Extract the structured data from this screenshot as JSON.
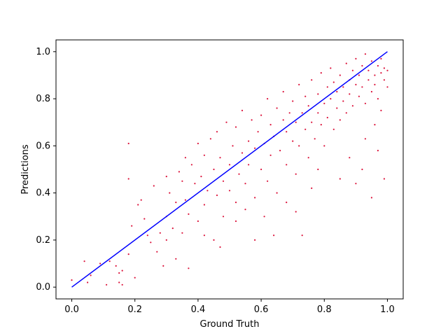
{
  "chart_data": {
    "type": "scatter",
    "title": "",
    "xlabel": "Ground Truth",
    "ylabel": "Predictions",
    "xlim": [
      -0.05,
      1.05
    ],
    "ylim": [
      -0.05,
      1.05
    ],
    "xticks": [
      0.0,
      0.2,
      0.4,
      0.6,
      0.8,
      1.0
    ],
    "yticks": [
      0.0,
      0.2,
      0.4,
      0.6,
      0.8,
      1.0
    ],
    "xtick_labels": [
      "0.0",
      "0.2",
      "0.4",
      "0.6",
      "0.8",
      "1.0"
    ],
    "ytick_labels": [
      "0.0",
      "0.2",
      "0.4",
      "0.6",
      "0.8",
      "1.0"
    ],
    "grid": false,
    "series": [
      {
        "marker": "point",
        "color": "#dc143c",
        "points": [
          [
            0.0,
            0.03
          ],
          [
            0.04,
            0.11
          ],
          [
            0.05,
            0.02
          ],
          [
            0.06,
            0.05
          ],
          [
            0.09,
            0.1
          ],
          [
            0.11,
            0.01
          ],
          [
            0.12,
            0.11
          ],
          [
            0.14,
            0.09
          ],
          [
            0.15,
            0.02
          ],
          [
            0.15,
            0.06
          ],
          [
            0.16,
            0.01
          ],
          [
            0.16,
            0.07
          ],
          [
            0.18,
            0.14
          ],
          [
            0.18,
            0.46
          ],
          [
            0.18,
            0.61
          ],
          [
            0.19,
            0.26
          ],
          [
            0.2,
            0.04
          ],
          [
            0.21,
            0.35
          ],
          [
            0.22,
            0.37
          ],
          [
            0.23,
            0.29
          ],
          [
            0.24,
            0.22
          ],
          [
            0.25,
            0.19
          ],
          [
            0.26,
            0.43
          ],
          [
            0.27,
            0.15
          ],
          [
            0.28,
            0.23
          ],
          [
            0.29,
            0.09
          ],
          [
            0.3,
            0.47
          ],
          [
            0.3,
            0.3
          ],
          [
            0.31,
            0.4
          ],
          [
            0.32,
            0.25
          ],
          [
            0.33,
            0.36
          ],
          [
            0.34,
            0.49
          ],
          [
            0.35,
            0.45
          ],
          [
            0.35,
            0.23
          ],
          [
            0.36,
            0.37
          ],
          [
            0.36,
            0.55
          ],
          [
            0.37,
            0.31
          ],
          [
            0.38,
            0.52
          ],
          [
            0.39,
            0.44
          ],
          [
            0.4,
            0.28
          ],
          [
            0.4,
            0.61
          ],
          [
            0.41,
            0.47
          ],
          [
            0.42,
            0.35
          ],
          [
            0.42,
            0.56
          ],
          [
            0.43,
            0.41
          ],
          [
            0.44,
            0.63
          ],
          [
            0.45,
            0.2
          ],
          [
            0.45,
            0.5
          ],
          [
            0.46,
            0.39
          ],
          [
            0.46,
            0.66
          ],
          [
            0.47,
            0.55
          ],
          [
            0.48,
            0.3
          ],
          [
            0.48,
            0.45
          ],
          [
            0.49,
            0.7
          ],
          [
            0.5,
            0.52
          ],
          [
            0.5,
            0.41
          ],
          [
            0.51,
            0.6
          ],
          [
            0.52,
            0.36
          ],
          [
            0.52,
            0.68
          ],
          [
            0.53,
            0.48
          ],
          [
            0.54,
            0.57
          ],
          [
            0.54,
            0.75
          ],
          [
            0.55,
            0.44
          ],
          [
            0.56,
            0.62
          ],
          [
            0.56,
            0.52
          ],
          [
            0.57,
            0.71
          ],
          [
            0.58,
            0.38
          ],
          [
            0.58,
            0.59
          ],
          [
            0.59,
            0.66
          ],
          [
            0.6,
            0.5
          ],
          [
            0.6,
            0.73
          ],
          [
            0.61,
            0.61
          ],
          [
            0.62,
            0.45
          ],
          [
            0.62,
            0.8
          ],
          [
            0.63,
            0.56
          ],
          [
            0.63,
            0.69
          ],
          [
            0.64,
            0.64
          ],
          [
            0.65,
            0.4
          ],
          [
            0.65,
            0.76
          ],
          [
            0.66,
            0.58
          ],
          [
            0.67,
            0.71
          ],
          [
            0.67,
            0.83
          ],
          [
            0.68,
            0.52
          ],
          [
            0.68,
            0.66
          ],
          [
            0.69,
            0.74
          ],
          [
            0.7,
            0.62
          ],
          [
            0.7,
            0.79
          ],
          [
            0.71,
            0.48
          ],
          [
            0.71,
            0.7
          ],
          [
            0.72,
            0.86
          ],
          [
            0.72,
            0.6
          ],
          [
            0.73,
            0.74
          ],
          [
            0.74,
            0.67
          ],
          [
            0.74,
            0.81
          ],
          [
            0.75,
            0.55
          ],
          [
            0.75,
            0.77
          ],
          [
            0.76,
            0.7
          ],
          [
            0.76,
            0.88
          ],
          [
            0.77,
            0.63
          ],
          [
            0.78,
            0.82
          ],
          [
            0.78,
            0.74
          ],
          [
            0.79,
            0.69
          ],
          [
            0.79,
            0.91
          ],
          [
            0.8,
            0.78
          ],
          [
            0.8,
            0.6
          ],
          [
            0.81,
            0.85
          ],
          [
            0.81,
            0.72
          ],
          [
            0.82,
            0.8
          ],
          [
            0.82,
            0.93
          ],
          [
            0.83,
            0.67
          ],
          [
            0.83,
            0.87
          ],
          [
            0.84,
            0.76
          ],
          [
            0.84,
            0.83
          ],
          [
            0.85,
            0.9
          ],
          [
            0.85,
            0.71
          ],
          [
            0.86,
            0.85
          ],
          [
            0.86,
            0.79
          ],
          [
            0.87,
            0.95
          ],
          [
            0.87,
            0.74
          ],
          [
            0.88,
            0.88
          ],
          [
            0.88,
            0.82
          ],
          [
            0.89,
            0.92
          ],
          [
            0.89,
            0.77
          ],
          [
            0.9,
            0.86
          ],
          [
            0.9,
            0.97
          ],
          [
            0.91,
            0.81
          ],
          [
            0.91,
            0.9
          ],
          [
            0.92,
            0.94
          ],
          [
            0.92,
            0.85
          ],
          [
            0.93,
            0.78
          ],
          [
            0.93,
            0.99
          ],
          [
            0.94,
            0.88
          ],
          [
            0.94,
            0.92
          ],
          [
            0.95,
            0.83
          ],
          [
            0.95,
            0.96
          ],
          [
            0.96,
            0.9
          ],
          [
            0.96,
            0.86
          ],
          [
            0.97,
            0.94
          ],
          [
            0.97,
            0.8
          ],
          [
            0.98,
            0.91
          ],
          [
            0.98,
            0.97
          ],
          [
            0.99,
            0.88
          ],
          [
            0.99,
            0.93
          ],
          [
            1.0,
            0.92
          ],
          [
            1.0,
            0.85
          ],
          [
            0.3,
            0.2
          ],
          [
            0.33,
            0.12
          ],
          [
            0.37,
            0.08
          ],
          [
            0.42,
            0.22
          ],
          [
            0.47,
            0.17
          ],
          [
            0.52,
            0.28
          ],
          [
            0.55,
            0.33
          ],
          [
            0.58,
            0.2
          ],
          [
            0.61,
            0.3
          ],
          [
            0.64,
            0.22
          ],
          [
            0.68,
            0.36
          ],
          [
            0.71,
            0.32
          ],
          [
            0.73,
            0.22
          ],
          [
            0.76,
            0.42
          ],
          [
            0.78,
            0.5
          ],
          [
            0.85,
            0.46
          ],
          [
            0.88,
            0.55
          ],
          [
            0.9,
            0.44
          ],
          [
            0.92,
            0.5
          ],
          [
            0.95,
            0.38
          ],
          [
            0.97,
            0.58
          ],
          [
            0.99,
            0.46
          ],
          [
            0.93,
            0.63
          ],
          [
            0.96,
            0.69
          ],
          [
            0.98,
            0.75
          ]
        ]
      }
    ],
    "reference_line": {
      "color": "#0000ff",
      "from": [
        0.0,
        0.0
      ],
      "to": [
        1.0,
        1.0
      ]
    }
  }
}
